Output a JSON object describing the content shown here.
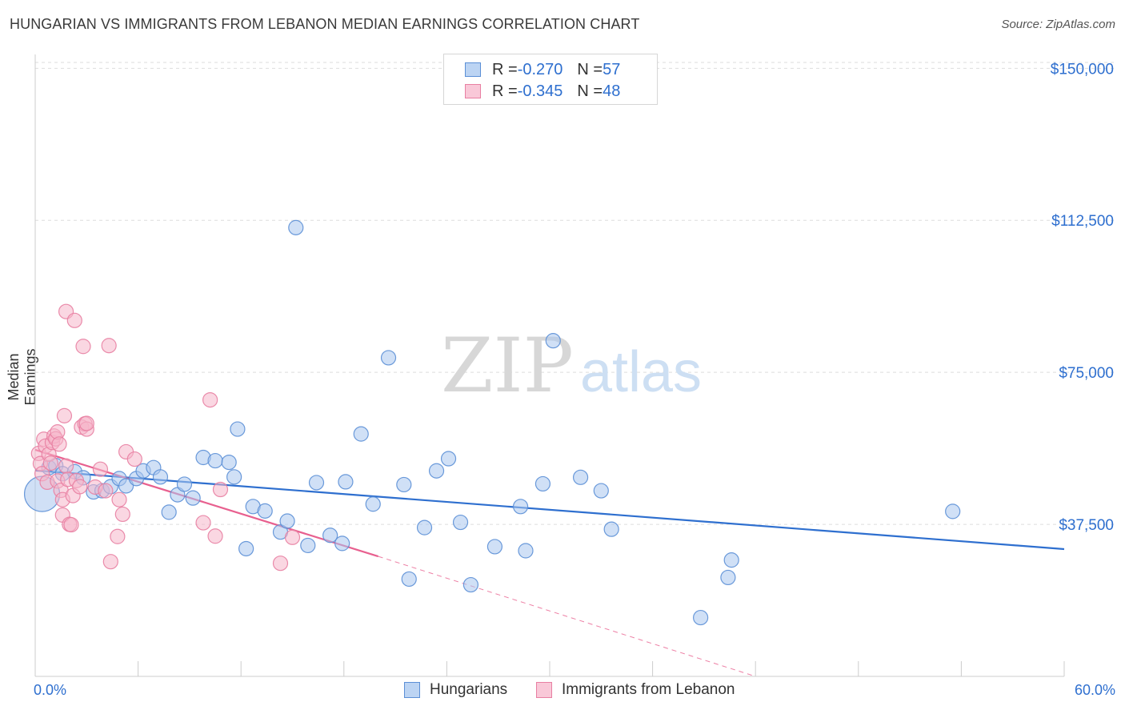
{
  "title": "HUNGARIAN VS IMMIGRANTS FROM LEBANON MEDIAN EARNINGS CORRELATION CHART",
  "source": "Source: ZipAtlas.com",
  "watermark": {
    "zip": "ZIP",
    "atlas": "atlas"
  },
  "colors": {
    "blue_fill": "#a9c6ee",
    "blue_stroke": "#5b8fd6",
    "blue_line": "#2e6fcf",
    "pink_fill": "#f6b7cb",
    "pink_stroke": "#e87fa2",
    "pink_line": "#e8608f",
    "axis_text": "#2e6fcf",
    "grid": "#dddddd"
  },
  "legend": {
    "rows": [
      {
        "r_label": "R = ",
        "r_value": "-0.270",
        "n_label": "N = ",
        "n_value": "57"
      },
      {
        "r_label": "R = ",
        "r_value": "-0.345",
        "n_label": "N = ",
        "n_value": "48"
      }
    ]
  },
  "bottom_legend": {
    "series1": "Hungarians",
    "series2": "Immigrants from Lebanon"
  },
  "chart_data": {
    "type": "scatter",
    "title": "HUNGARIAN VS IMMIGRANTS FROM LEBANON MEDIAN EARNINGS CORRELATION CHART",
    "xlabel": "",
    "ylabel": "Median Earnings",
    "xlim": [
      0,
      60
    ],
    "ylim": [
      0,
      155000
    ],
    "x_tick_labels": [
      "0.0%",
      "60.0%"
    ],
    "y_ticks": [
      37500,
      75000,
      112500,
      150000
    ],
    "y_tick_labels": [
      "$37,500",
      "$75,000",
      "$112,500",
      "$150,000"
    ],
    "grid": true,
    "legend_position": "top-center",
    "series": [
      {
        "name": "Hungarians",
        "r": -0.27,
        "n": 57,
        "trend": {
          "x": [
            0,
            60
          ],
          "y": [
            50800,
            31400
          ]
        },
        "points": [
          [
            0.4,
            45000,
            2
          ],
          [
            0.8,
            51500,
            1
          ],
          [
            1.2,
            52000,
            1
          ],
          [
            1.6,
            50000,
            1
          ],
          [
            2.3,
            50500,
            1
          ],
          [
            2.8,
            49000,
            1
          ],
          [
            3.4,
            45500,
            1
          ],
          [
            3.9,
            45800,
            1
          ],
          [
            4.4,
            46800,
            1
          ],
          [
            4.9,
            48800,
            1
          ],
          [
            5.3,
            47000,
            1
          ],
          [
            5.9,
            48800,
            1
          ],
          [
            6.3,
            50700,
            1
          ],
          [
            6.9,
            51500,
            1
          ],
          [
            7.3,
            49200,
            1
          ],
          [
            7.8,
            40500,
            1
          ],
          [
            8.3,
            44800,
            1
          ],
          [
            8.7,
            47400,
            1
          ],
          [
            9.2,
            44000,
            1
          ],
          [
            9.8,
            54000,
            1
          ],
          [
            10.5,
            53200,
            1
          ],
          [
            11.3,
            52800,
            1
          ],
          [
            11.6,
            49200,
            1
          ],
          [
            11.8,
            61000,
            1
          ],
          [
            12.3,
            31500,
            1
          ],
          [
            12.7,
            41900,
            1
          ],
          [
            13.4,
            40800,
            1
          ],
          [
            14.3,
            35600,
            1
          ],
          [
            14.7,
            38300,
            1
          ],
          [
            15.2,
            110700,
            1
          ],
          [
            15.9,
            32300,
            1
          ],
          [
            16.4,
            47800,
            1
          ],
          [
            17.2,
            34800,
            1
          ],
          [
            17.9,
            32800,
            1
          ],
          [
            18.1,
            48000,
            1
          ],
          [
            19.0,
            59800,
            1
          ],
          [
            19.7,
            42500,
            1
          ],
          [
            20.6,
            78600,
            1
          ],
          [
            21.5,
            47300,
            1
          ],
          [
            21.8,
            24000,
            1
          ],
          [
            22.7,
            36700,
            1
          ],
          [
            23.4,
            50700,
            1
          ],
          [
            24.1,
            53700,
            1
          ],
          [
            24.8,
            38000,
            1
          ],
          [
            25.4,
            22600,
            1
          ],
          [
            26.8,
            32000,
            1
          ],
          [
            28.3,
            41900,
            1
          ],
          [
            28.6,
            31000,
            1
          ],
          [
            29.6,
            47500,
            1
          ],
          [
            30.2,
            82800,
            1
          ],
          [
            31.8,
            49100,
            1
          ],
          [
            33.0,
            45800,
            1
          ],
          [
            33.6,
            36300,
            1
          ],
          [
            38.8,
            14500,
            1
          ],
          [
            40.4,
            24400,
            1
          ],
          [
            40.6,
            28700,
            1
          ],
          [
            53.5,
            40700,
            1
          ]
        ]
      },
      {
        "name": "Immigrants from Lebanon",
        "r": -0.345,
        "n": 48,
        "trend": {
          "x": [
            0,
            20
          ],
          "y": [
            55900,
            29600
          ]
        },
        "trend_dashed": {
          "x": [
            20,
            42
          ],
          "y": [
            29600,
            0
          ]
        },
        "points": [
          [
            0.2,
            55000,
            1
          ],
          [
            0.3,
            52500,
            1
          ],
          [
            0.4,
            50000,
            1
          ],
          [
            0.5,
            58500,
            1
          ],
          [
            0.6,
            56800,
            1
          ],
          [
            0.7,
            47900,
            1
          ],
          [
            0.8,
            54800,
            1
          ],
          [
            0.9,
            52600,
            1
          ],
          [
            1.0,
            57700,
            1
          ],
          [
            1.1,
            59300,
            1
          ],
          [
            1.2,
            58600,
            1
          ],
          [
            1.3,
            48200,
            1
          ],
          [
            1.3,
            60300,
            1
          ],
          [
            1.4,
            57300,
            1
          ],
          [
            1.5,
            45900,
            1
          ],
          [
            1.6,
            43600,
            1
          ],
          [
            1.6,
            39800,
            1
          ],
          [
            1.7,
            64300,
            1
          ],
          [
            1.8,
            51900,
            1
          ],
          [
            1.8,
            90000,
            1
          ],
          [
            1.9,
            48600,
            1
          ],
          [
            2.0,
            37500,
            1
          ],
          [
            2.1,
            37400,
            1
          ],
          [
            2.2,
            44600,
            1
          ],
          [
            2.3,
            87800,
            1
          ],
          [
            2.4,
            48300,
            1
          ],
          [
            2.6,
            46800,
            1
          ],
          [
            2.7,
            61500,
            1
          ],
          [
            2.8,
            81400,
            1
          ],
          [
            2.9,
            62300,
            1
          ],
          [
            3.0,
            61000,
            1
          ],
          [
            3.0,
            62400,
            1
          ],
          [
            3.5,
            46700,
            1
          ],
          [
            3.8,
            51100,
            1
          ],
          [
            4.1,
            45800,
            1
          ],
          [
            4.3,
            81600,
            1
          ],
          [
            4.4,
            28300,
            1
          ],
          [
            4.8,
            34500,
            1
          ],
          [
            4.9,
            43600,
            1
          ],
          [
            5.1,
            40000,
            1
          ],
          [
            5.3,
            55400,
            1
          ],
          [
            5.8,
            53600,
            1
          ],
          [
            9.8,
            37900,
            1
          ],
          [
            10.2,
            68200,
            1
          ],
          [
            10.5,
            34600,
            1
          ],
          [
            10.8,
            46100,
            1
          ],
          [
            14.3,
            27900,
            1
          ],
          [
            15.0,
            34300,
            1
          ]
        ]
      }
    ]
  }
}
